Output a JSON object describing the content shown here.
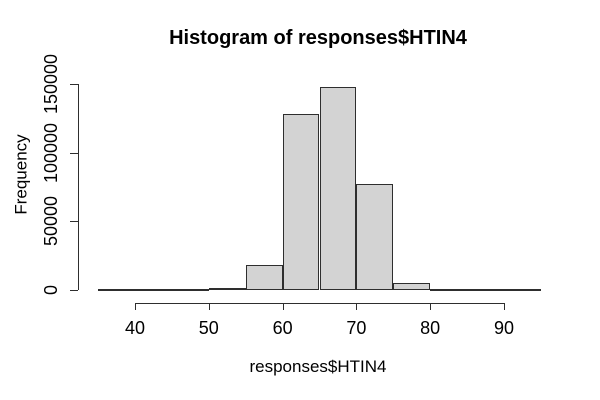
{
  "figure": {
    "background": "#ffffff"
  },
  "chart_data": {
    "type": "bar",
    "subtype": "histogram",
    "title": "Histogram of responses$HTIN4",
    "xlabel": "responses$HTIN4",
    "ylabel": "Frequency",
    "bin_edges": [
      35,
      40,
      45,
      50,
      55,
      60,
      65,
      70,
      75,
      80,
      85,
      90,
      95
    ],
    "counts": [
      50,
      100,
      300,
      1500,
      18200,
      128200,
      147800,
      77200,
      5100,
      700,
      100,
      50
    ],
    "x_ticks": [
      40,
      50,
      60,
      70,
      80,
      90
    ],
    "x_tick_labels": [
      "40",
      "50",
      "60",
      "70",
      "80",
      "90"
    ],
    "y_ticks": [
      0,
      50000,
      100000,
      150000
    ],
    "y_tick_labels": [
      "0",
      "50000",
      "100000",
      "150000"
    ],
    "xlim": [
      35,
      95
    ],
    "ylim": [
      0,
      150000
    ],
    "grid": false,
    "legend": null,
    "colors": {
      "bar_fill": "#d3d3d3",
      "bar_border": "#2e2e2e",
      "axis": "#2e2e2e",
      "text": "#000000"
    }
  }
}
